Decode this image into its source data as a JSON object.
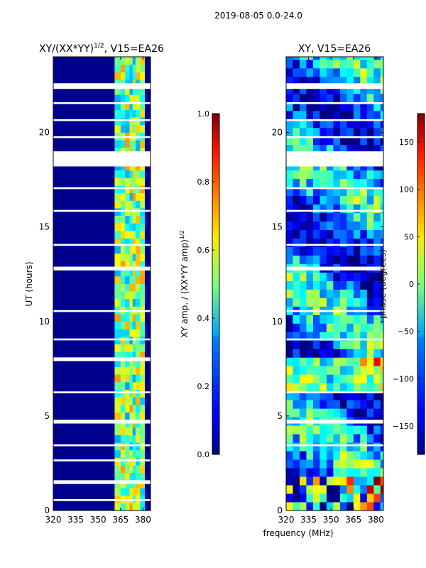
{
  "figure": {
    "suptitle": "2019-08-05 0.0-24.0",
    "shared_xlabel": "frequency (MHz)"
  },
  "chart_data": [
    {
      "type": "heatmap",
      "title_main": "XY/(XX*YY)",
      "title_exp": "1/2",
      "title_suffix": ", V15=EA26",
      "ylabel": "UT (hours)",
      "xlim": [
        320,
        385
      ],
      "ylim": [
        0,
        24
      ],
      "xticks": [
        320,
        335,
        350,
        365,
        380
      ],
      "xtick_labels": [
        "320",
        "335",
        "350",
        "365",
        "380"
      ],
      "yticks": [
        0,
        5,
        10,
        15,
        20
      ],
      "ytick_labels": [
        "0",
        "5",
        "10",
        "15",
        "20"
      ],
      "colorbar": {
        "label_main": "XY amp. / (XX*YY amp)",
        "label_exp": "1/2",
        "range": [
          0.0,
          1.0
        ],
        "ticks": [
          0.0,
          0.2,
          0.4,
          0.6,
          0.8,
          1.0
        ],
        "tick_labels": [
          "0.0",
          "0.2",
          "0.4",
          "0.6",
          "0.8",
          "1.0"
        ]
      },
      "band_edges_mhz": [
        361,
        365,
        368,
        371,
        373,
        375,
        378,
        381
      ],
      "blank_hours": [
        [
          18.2,
          19.0
        ],
        [
          12.7,
          12.9
        ],
        [
          7.9,
          8.1
        ],
        [
          4.6,
          4.8
        ],
        [
          1.4,
          1.6
        ],
        [
          22.3,
          22.6
        ],
        [
          21.5,
          21.6
        ],
        [
          20.6,
          20.7
        ],
        [
          19.7,
          19.8
        ],
        [
          17.0,
          17.1
        ],
        [
          15.8,
          15.9
        ],
        [
          14.0,
          14.1
        ],
        [
          10.5,
          10.6
        ],
        [
          9.0,
          9.1
        ],
        [
          6.2,
          6.3
        ],
        [
          3.4,
          3.5
        ],
        [
          2.6,
          2.7
        ],
        [
          0.5,
          0.6
        ]
      ]
    },
    {
      "type": "heatmap",
      "title": "XY, V15=EA26",
      "xlim": [
        320,
        385
      ],
      "ylim": [
        0,
        24
      ],
      "xticks": [
        320,
        335,
        350,
        365,
        380
      ],
      "xtick_labels": [
        "320",
        "335",
        "350",
        "365",
        "380"
      ],
      "yticks": [
        0,
        5,
        10,
        15,
        20
      ],
      "ytick_labels": [
        "0",
        "5",
        "10",
        "15",
        "20"
      ],
      "colorbar": {
        "label": "phase (degrees)",
        "range": [
          -180,
          180
        ],
        "ticks": [
          -150,
          -100,
          -50,
          0,
          50,
          100,
          150
        ],
        "tick_labels": [
          "−150",
          "−100",
          "−50",
          "0",
          "50",
          "100",
          "150"
        ]
      },
      "blank_hours": [
        [
          18.2,
          19.0
        ],
        [
          12.7,
          12.9
        ],
        [
          4.6,
          4.8
        ],
        [
          22.3,
          22.6
        ],
        [
          21.5,
          21.6
        ],
        [
          20.6,
          20.7
        ],
        [
          19.7,
          19.8
        ],
        [
          17.0,
          17.1
        ],
        [
          15.8,
          15.9
        ],
        [
          14.0,
          14.1
        ],
        [
          10.5,
          10.6
        ],
        [
          9.0,
          9.1
        ],
        [
          6.2,
          6.3
        ],
        [
          3.4,
          3.5
        ]
      ]
    }
  ]
}
